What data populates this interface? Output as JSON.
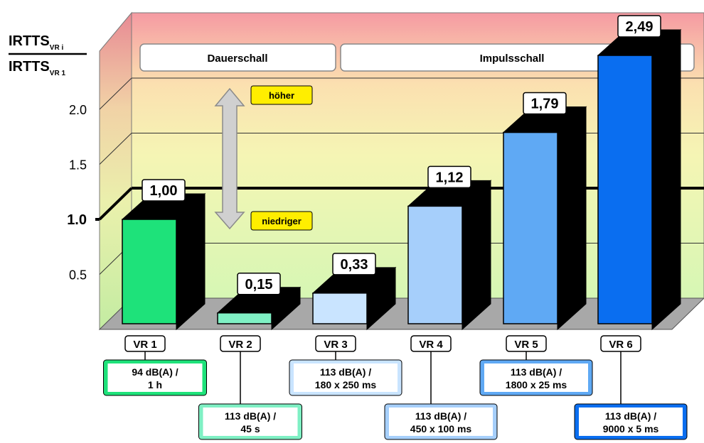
{
  "chart_data": {
    "type": "bar",
    "ylabel_main": "IRTTS",
    "ylabel_num_sub": "VR i",
    "ylabel_den_sub": "VR 1",
    "ylim": [
      0,
      2.8
    ],
    "yticks": [
      "0.5",
      "1.0",
      "1.5",
      "2.0"
    ],
    "ytick_values": [
      0.5,
      1.0,
      1.5,
      2.0
    ],
    "reference_value": 1.0,
    "groups": [
      {
        "label": "Dauerschall"
      },
      {
        "label": "Impulsschall"
      }
    ],
    "arrow_labels": {
      "up": "höher",
      "down": "niedriger"
    },
    "categories": [
      "VR 1",
      "VR 2",
      "VR 3",
      "VR 4",
      "VR 5",
      "VR 6"
    ],
    "values": [
      1.0,
      0.15,
      0.33,
      1.12,
      1.79,
      2.49
    ],
    "value_labels": [
      "1,00",
      "0,15",
      "0,33",
      "1,12",
      "1,79",
      "2,49"
    ],
    "conditions": [
      {
        "line1": "94 dB(A) /",
        "line2": "1 h"
      },
      {
        "line1": "113 dB(A) /",
        "line2": "45 s"
      },
      {
        "line1": "113 dB(A) /",
        "line2": "180 x 250 ms"
      },
      {
        "line1": "113 dB(A) /",
        "line2": "450 x 100 ms"
      },
      {
        "line1": "113 dB(A) /",
        "line2": "1800 x 25 ms"
      },
      {
        "line1": "113 dB(A) /",
        "line2": "9000 x 5 ms"
      }
    ],
    "colors": [
      "#1ee27a",
      "#7ff0c4",
      "#c9e4ff",
      "#a6cffb",
      "#5fa9f4",
      "#0a6ef0"
    ]
  }
}
